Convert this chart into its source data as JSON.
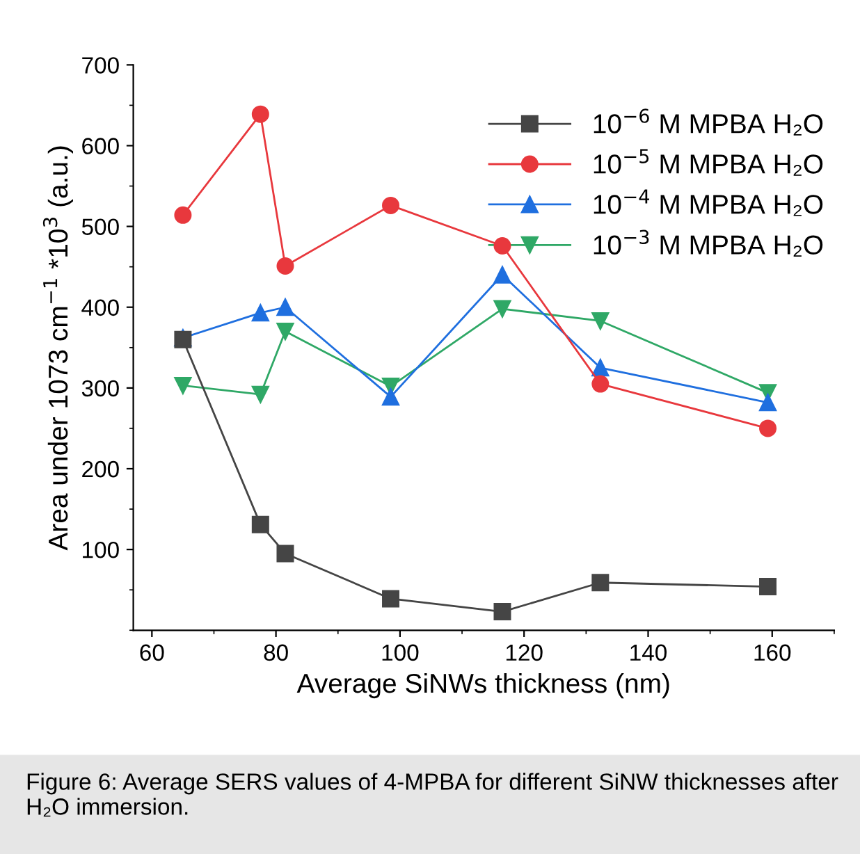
{
  "chart_data": {
    "type": "line",
    "xlabel": "Average SiNWs thickness (nm)",
    "ylabel": "Area under 1073 cm$^{−1}$ *10$^{3}$ (a.u.)",
    "x": [
      65,
      77.5,
      81.5,
      98.5,
      116.5,
      132.3,
      159.3
    ],
    "series": [
      {
        "name": "10$^{−6}$ M MPBA H₂O",
        "color": "#454545",
        "marker": "square",
        "values": [
          360,
          131,
          95,
          39,
          23,
          59,
          54
        ]
      },
      {
        "name": "10$^{−5}$ M MPBA H₂O",
        "color": "#e8383d",
        "marker": "circle",
        "values": [
          514,
          639,
          451,
          526,
          476,
          305,
          250
        ]
      },
      {
        "name": "10$^{−4}$ M MPBA H₂O",
        "color": "#1f6fdf",
        "marker": "triangle",
        "values": [
          362,
          393,
          400,
          289,
          440,
          325,
          282
        ]
      },
      {
        "name": "10$^{−3}$ M MPBA H₂O",
        "color": "#2fa866",
        "marker": "triangle_down",
        "values": [
          303,
          292,
          370,
          302,
          398,
          383,
          294
        ]
      }
    ],
    "xlim": [
      57,
      170
    ],
    "ylim": [
      0,
      700
    ],
    "xticks": [
      60,
      80,
      100,
      120,
      140,
      160
    ],
    "yticks": [
      100,
      200,
      300,
      400,
      500,
      600,
      700
    ],
    "grid": false,
    "legend": "top right",
    "line_style": "solid",
    "annotations": [
      "Figure 6: Average SERS values of 4-MPBA for different SiNW thicknesses after H₂O immersion."
    ]
  }
}
